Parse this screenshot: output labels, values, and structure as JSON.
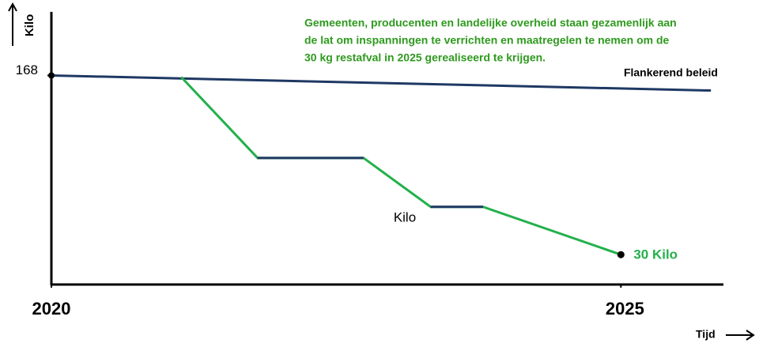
{
  "chart_data": {
    "type": "line",
    "y_label": "Kilo",
    "x_label": "Tijd",
    "annotation": [
      "Gemeenten, producenten en landelijke overheid staan gezamenlijk aan",
      "de lat om inspanningen te verrichten en maatregelen te nemen om de",
      "30 kg restafval in 2025 gerealiseerd te krijgen."
    ],
    "xlim": [
      2020,
      2025.9
    ],
    "xticks": [
      2020,
      2025
    ],
    "ylim": [
      7,
      217
    ],
    "yticks": [
      168
    ],
    "flat_color": "#1f3864",
    "series": [
      {
        "name": "Flankerend beleid",
        "color": "#1f3864",
        "x": [
          2020,
          2025.79
        ],
        "values": [
          168,
          156.4
        ]
      },
      {
        "name": "Kilo",
        "color": "#22b04b",
        "x": [
          2021.14,
          2021.81,
          2022.74,
          2023.33,
          2023.79,
          2025
        ],
        "values": [
          166.8,
          104.5,
          104.5,
          66.8,
          66.8,
          30
        ],
        "value_labels": [
          null,
          null,
          null,
          null,
          null,
          "30 Kilo"
        ]
      }
    ]
  }
}
